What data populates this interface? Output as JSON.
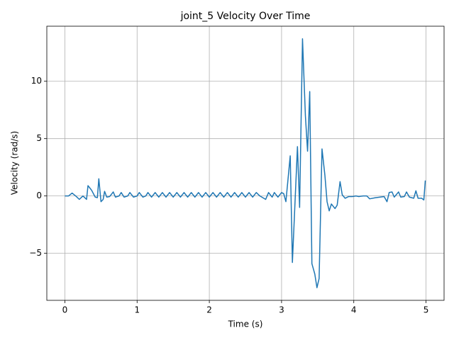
{
  "chart_data": {
    "type": "line",
    "title": "joint_5 Velocity Over Time",
    "x_label": "Time (s)",
    "y_label": "Velocity (rad/s)",
    "x": [
      0,
      0.05,
      0.1,
      0.15,
      0.2,
      0.25,
      0.3,
      0.32,
      0.37,
      0.42,
      0.45,
      0.47,
      0.5,
      0.53,
      0.55,
      0.58,
      0.62,
      0.67,
      0.7,
      0.75,
      0.78,
      0.82,
      0.87,
      0.9,
      0.95,
      1.0,
      1.03,
      1.08,
      1.12,
      1.15,
      1.2,
      1.25,
      1.3,
      1.35,
      1.4,
      1.45,
      1.5,
      1.55,
      1.6,
      1.65,
      1.7,
      1.75,
      1.8,
      1.85,
      1.9,
      1.95,
      2.0,
      2.05,
      2.1,
      2.15,
      2.2,
      2.25,
      2.3,
      2.35,
      2.4,
      2.45,
      2.5,
      2.55,
      2.6,
      2.65,
      2.7,
      2.78,
      2.82,
      2.87,
      2.9,
      2.95,
      3.0,
      3.03,
      3.06,
      3.12,
      3.15,
      3.22,
      3.25,
      3.29,
      3.33,
      3.36,
      3.39,
      3.42,
      3.46,
      3.49,
      3.52,
      3.56,
      3.6,
      3.63,
      3.66,
      3.69,
      3.74,
      3.77,
      3.81,
      3.84,
      3.88,
      3.93,
      3.98,
      4.03,
      4.07,
      4.13,
      4.18,
      4.22,
      4.3,
      4.42,
      4.46,
      4.49,
      4.53,
      4.56,
      4.62,
      4.65,
      4.7,
      4.73,
      4.77,
      4.83,
      4.86,
      4.89,
      4.94,
      4.97,
      4.99
    ],
    "values": [
      0,
      0,
      0.25,
      0,
      -0.3,
      0,
      -0.3,
      0.9,
      0.5,
      -0.1,
      -0.15,
      1.5,
      -0.5,
      -0.3,
      0.4,
      -0.1,
      -0.05,
      0.35,
      -0.1,
      0,
      0.3,
      -0.1,
      0,
      0.3,
      -0.1,
      0,
      0.3,
      -0.1,
      0,
      0.3,
      -0.1,
      0.3,
      -0.1,
      0.3,
      -0.1,
      0.3,
      -0.1,
      0.3,
      -0.1,
      0.3,
      -0.1,
      0.3,
      -0.1,
      0.3,
      -0.1,
      0.3,
      -0.1,
      0.3,
      -0.1,
      0.3,
      -0.1,
      0.3,
      -0.1,
      0.3,
      -0.1,
      0.3,
      -0.1,
      0.3,
      -0.1,
      0.3,
      0,
      -0.3,
      0.3,
      -0.1,
      0.3,
      -0.1,
      0.3,
      0.2,
      -0.5,
      3.5,
      -5.8,
      4.3,
      -1.0,
      13.7,
      7,
      3.9,
      9.1,
      -5.9,
      -6.8,
      -8.0,
      -7.2,
      4.1,
      1.8,
      -0.5,
      -1.3,
      -0.7,
      -1.1,
      -0.8,
      1.25,
      0.1,
      -0.2,
      -0.05,
      -0.05,
      0,
      -0.05,
      0,
      0,
      -0.25,
      -0.15,
      -0.05,
      -0.5,
      0.3,
      0.35,
      -0.1,
      0.35,
      -0.1,
      -0.05,
      0.35,
      -0.1,
      -0.2,
      0.45,
      -0.2,
      -0.2,
      -0.35,
      1.35
    ],
    "color": "#1f77b4",
    "xlim": [
      -0.25,
      5.25
    ],
    "ylim": [
      -9.1,
      14.8
    ],
    "xticks": [
      0,
      1,
      2,
      3,
      4,
      5
    ],
    "yticks": [
      {
        "value": -5,
        "label": "−5"
      },
      0,
      5,
      10
    ],
    "grid": true
  }
}
